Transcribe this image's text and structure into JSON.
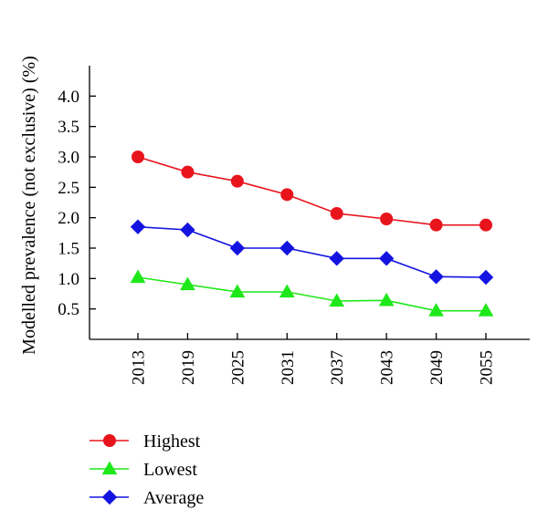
{
  "chart_data": {
    "type": "line",
    "x": [
      "2013",
      "2019",
      "2025",
      "2031",
      "2037",
      "2043",
      "2049",
      "2055"
    ],
    "series": [
      {
        "name": "Highest",
        "color": "#e8141c",
        "marker": "circle",
        "values": [
          3.0,
          2.75,
          2.6,
          2.38,
          2.07,
          1.98,
          1.88,
          1.88
        ]
      },
      {
        "name": "Lowest",
        "color": "#1fe81a",
        "marker": "triangle",
        "values": [
          1.02,
          0.9,
          0.78,
          0.78,
          0.63,
          0.64,
          0.47,
          0.47
        ]
      },
      {
        "name": "Average",
        "color": "#1414e0",
        "marker": "diamond",
        "values": [
          1.85,
          1.8,
          1.5,
          1.5,
          1.33,
          1.33,
          1.03,
          1.02
        ]
      }
    ],
    "yticks": [
      "0.5",
      "1.0",
      "1.5",
      "2.0",
      "2.5",
      "3.0",
      "3.5",
      "4.0"
    ],
    "ytick_values": [
      0.5,
      1.0,
      1.5,
      2.0,
      2.5,
      3.0,
      3.5,
      4.0
    ],
    "ylim": [
      0.0,
      4.5
    ],
    "ylabel": "Modelled prevalence (not exclusive) (%)",
    "xlabel": "",
    "title": "",
    "grid": false,
    "legend_position": "bottom-left"
  }
}
